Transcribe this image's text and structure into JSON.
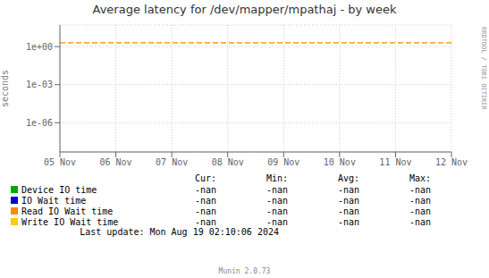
{
  "chart_data": {
    "type": "line",
    "title": "Average latency for /dev/mapper/mpathaj - by week",
    "y_label": "seconds",
    "categories": [
      "05 Nov",
      "06 Nov",
      "07 Nov",
      "08 Nov",
      "09 Nov",
      "10 Nov",
      "11 Nov",
      "12 Nov"
    ],
    "series": [
      {
        "name": "Device IO time",
        "color": "#00aa00",
        "values": [
          null,
          null,
          null,
          null,
          null,
          null,
          null,
          null
        ]
      },
      {
        "name": "IO Wait time",
        "color": "#0000cc",
        "values": [
          null,
          null,
          null,
          null,
          null,
          null,
          null,
          null
        ]
      },
      {
        "name": "Read IO Wait time",
        "color": "#ff8800",
        "values": [
          null,
          null,
          null,
          null,
          null,
          null,
          null,
          null
        ]
      },
      {
        "name": "Write IO Wait time",
        "color": "#ffcc00",
        "values": [
          null,
          null,
          null,
          null,
          null,
          null,
          null,
          null
        ]
      }
    ],
    "log": "y",
    "ylim": [
      5e-09,
      50
    ],
    "yticks": [
      {
        "value": 1e-06,
        "label": "1e-06"
      },
      {
        "value": 0.001,
        "label": "1e-03"
      },
      {
        "value": 1,
        "label": "1e+00"
      }
    ],
    "grid": true,
    "hline": {
      "value": 2.0,
      "color": "#ff8800",
      "line_style": "dashed"
    },
    "legend_columns": [
      "Cur:",
      "Min:",
      "Avg:",
      "Max:"
    ],
    "legend_value": "-nan",
    "annotations": [
      "Last update: Mon Aug 19 02:10:06 2024",
      "RRDTOOL / TOBI OETIKER",
      "Munin 2.0.73"
    ]
  }
}
